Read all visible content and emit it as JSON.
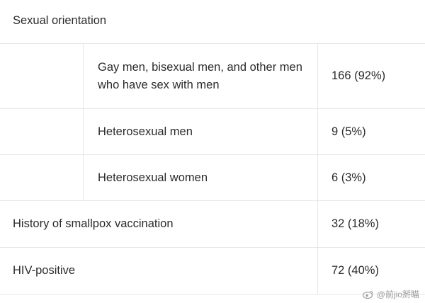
{
  "section": {
    "title": "Sexual orientation"
  },
  "rows": [
    {
      "label": "Gay men, bisexual men, and other men who have sex with men",
      "value": "166 (92%)"
    },
    {
      "label": "Heterosexual men",
      "value": "9 (5%)"
    },
    {
      "label": "Heterosexual women",
      "value": "6 (3%)"
    },
    {
      "label": "History of smallpox vaccination",
      "value": "32 (18%)"
    },
    {
      "label": "HIV-positive",
      "value": "72 (40%)"
    }
  ],
  "watermark": {
    "icon": "weibo-icon",
    "text": "@前jio掰瞄"
  }
}
